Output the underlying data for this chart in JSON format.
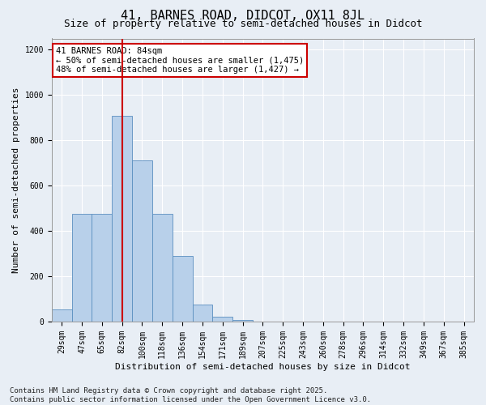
{
  "title": "41, BARNES ROAD, DIDCOT, OX11 8JL",
  "subtitle": "Size of property relative to semi-detached houses in Didcot",
  "xlabel": "Distribution of semi-detached houses by size in Didcot",
  "ylabel": "Number of semi-detached properties",
  "categories": [
    "29sqm",
    "47sqm",
    "65sqm",
    "82sqm",
    "100sqm",
    "118sqm",
    "136sqm",
    "154sqm",
    "171sqm",
    "189sqm",
    "207sqm",
    "225sqm",
    "243sqm",
    "260sqm",
    "278sqm",
    "296sqm",
    "314sqm",
    "332sqm",
    "349sqm",
    "367sqm",
    "385sqm"
  ],
  "values": [
    55,
    475,
    475,
    910,
    710,
    475,
    290,
    75,
    20,
    8,
    0,
    0,
    0,
    0,
    0,
    0,
    0,
    0,
    0,
    0,
    0
  ],
  "bar_color": "#b8d0ea",
  "bar_edge_color": "#5a8fc0",
  "vline_x": 3,
  "vline_color": "#cc0000",
  "annotation_text": "41 BARNES ROAD: 84sqm\n← 50% of semi-detached houses are smaller (1,475)\n48% of semi-detached houses are larger (1,427) →",
  "annotation_box_color": "#ffffff",
  "annotation_box_edge": "#cc0000",
  "ylim": [
    0,
    1250
  ],
  "yticks": [
    0,
    200,
    400,
    600,
    800,
    1000,
    1200
  ],
  "background_color": "#e8eef5",
  "grid_color": "#ffffff",
  "footer": "Contains HM Land Registry data © Crown copyright and database right 2025.\nContains public sector information licensed under the Open Government Licence v3.0.",
  "title_fontsize": 11,
  "subtitle_fontsize": 9,
  "axis_label_fontsize": 8,
  "tick_fontsize": 7,
  "annotation_fontsize": 7.5,
  "footer_fontsize": 6.5
}
